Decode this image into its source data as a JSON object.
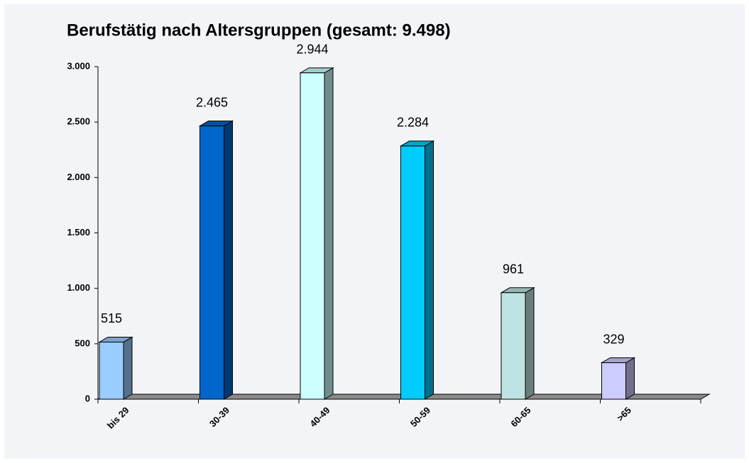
{
  "chart_data": {
    "type": "bar",
    "title": "Berufstätig nach Altersgruppen (gesamt: 9.498)",
    "categories": [
      "bis 29",
      "30-39",
      "40-49",
      "50-59",
      "60-65",
      ">65"
    ],
    "values": [
      515,
      2465,
      2944,
      2284,
      961,
      329
    ],
    "value_labels": [
      "515",
      "2.465",
      "2.944",
      "2.284",
      "961",
      "329"
    ],
    "colors": [
      "#99ccff",
      "#0066cc",
      "#ccffff",
      "#00ccff",
      "#bfe3e3",
      "#ccccff"
    ],
    "ylim": [
      0,
      3000
    ],
    "yticks": [
      0,
      500,
      {
        "value": 1000,
        "label": "1.000"
      },
      {
        "value": 1500,
        "label": "1.500"
      },
      {
        "value": 2000,
        "label": "2.000"
      },
      {
        "value": 2500,
        "label": "2.500"
      },
      {
        "value": 3000,
        "label": "3.000"
      }
    ]
  }
}
